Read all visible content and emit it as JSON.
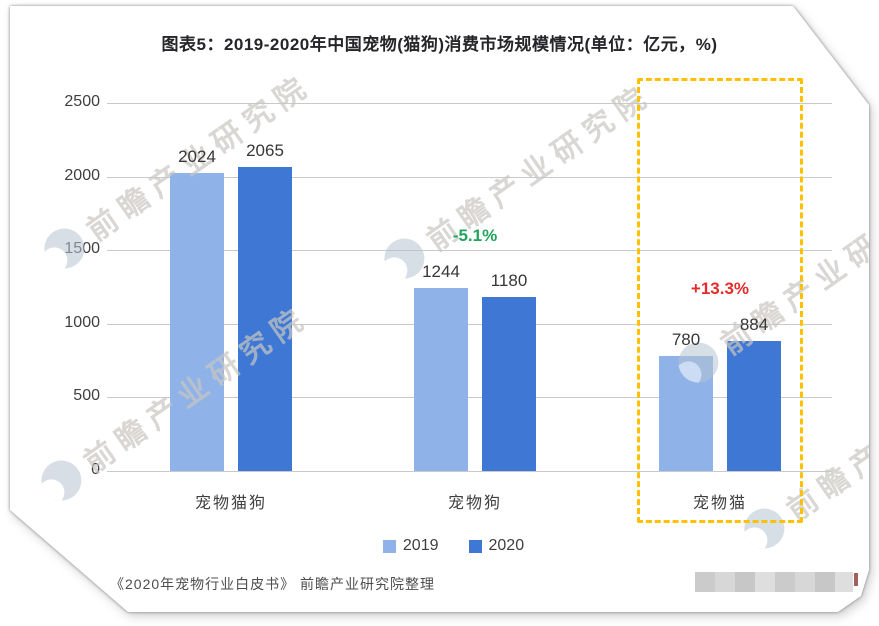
{
  "title": "图表5：2019-2020年中国宠物(猫狗)消费市场规模情况(单位：亿元，%)",
  "source_note": "《2020年宠物行业白皮书》 前瞻产业研究院整理",
  "watermark": {
    "text": "前瞻产业研究院"
  },
  "chart_data": {
    "type": "bar",
    "title": "图表5：2019-2020年中国宠物(猫狗)消费市场规模情况(单位：亿元，%)",
    "unit": "亿元",
    "categories": [
      "宠物猫狗",
      "宠物狗",
      "宠物猫"
    ],
    "series": [
      {
        "name": "2019",
        "color": "#8FB3E8",
        "values": [
          2024,
          1244,
          780
        ]
      },
      {
        "name": "2020",
        "color": "#3E78D4",
        "values": [
          2065,
          1180,
          884
        ]
      }
    ],
    "annotations": [
      {
        "category_index": 1,
        "text": "-5.1%",
        "color": "#21A55C"
      },
      {
        "category_index": 2,
        "text": "+13.3%",
        "color": "#E52B2B"
      }
    ],
    "highlight_box": {
      "category_index": 2,
      "border_color": "#FFC000",
      "style": "dashed"
    },
    "ylim": [
      0,
      2500
    ],
    "yticks": [
      0,
      500,
      1000,
      1500,
      2000,
      2500
    ],
    "grid": true,
    "legend_position": "bottom"
  }
}
